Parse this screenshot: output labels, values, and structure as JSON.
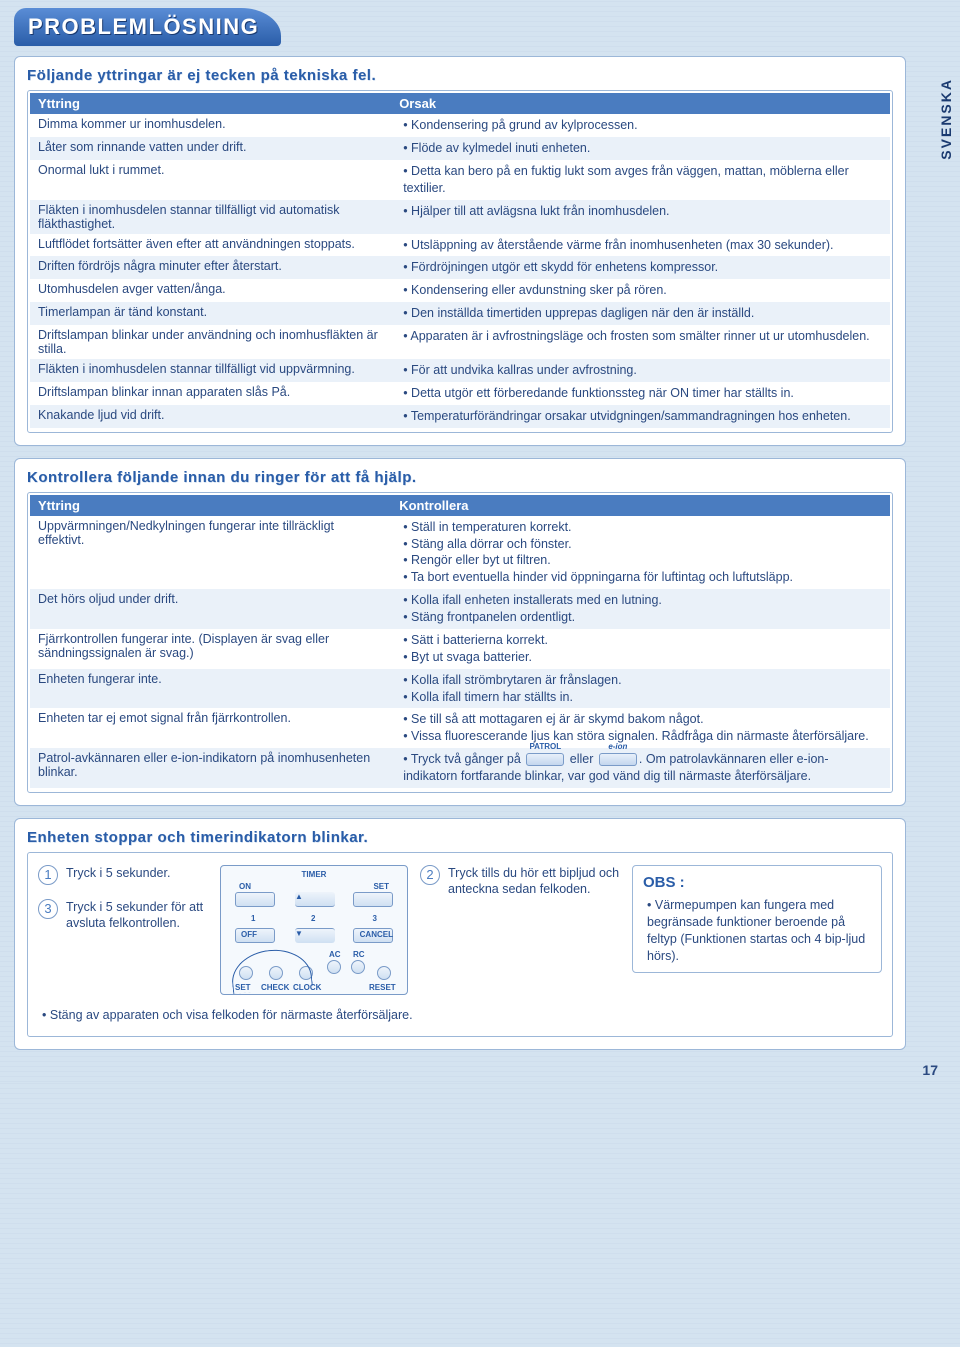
{
  "lang_tab": "SVENSKA",
  "page_number": "17",
  "title": "PROBLEMLÖSNING",
  "section1": {
    "heading": "Följande yttringar är ej tecken på tekniska fel.",
    "col1": "Yttring",
    "col2": "Orsak",
    "rows": [
      {
        "y": "Dimma kommer ur inomhusdelen.",
        "o": [
          "Kondensering på grund av kylprocessen."
        ]
      },
      {
        "y": "Låter som rinnande vatten under drift.",
        "o": [
          "Flöde av kylmedel inuti enheten."
        ]
      },
      {
        "y": "Onormal lukt i rummet.",
        "o": [
          "Detta kan bero på en fuktig lukt som avges från väggen, mattan, möblerna eller textilier."
        ]
      },
      {
        "y": "Fläkten i inomhusdelen stannar tillfälligt vid automatisk fläkthastighet.",
        "o": [
          "Hjälper till att avlägsna lukt från inomhusdelen."
        ]
      },
      {
        "y": "Luftflödet fortsätter även efter att användningen stoppats.",
        "o": [
          "Utsläppning av återstående värme från inomhusenheten (max 30 sekunder)."
        ]
      },
      {
        "y": "Driften fördröjs några minuter efter återstart.",
        "o": [
          "Fördröjningen utgör ett skydd för enhetens kompressor."
        ]
      },
      {
        "y": "Utomhusdelen avger vatten/ånga.",
        "o": [
          "Kondensering eller avdunstning sker på rören."
        ]
      },
      {
        "y": "Timerlampan är tänd konstant.",
        "o": [
          "Den inställda timertiden upprepas dagligen när den är inställd."
        ]
      },
      {
        "y": "Driftslampan blinkar under användning och inomhusfläkten är stilla.",
        "o": [
          "Apparaten är i avfrostningsläge och frosten som smälter rinner ut ur utomhusdelen."
        ]
      },
      {
        "y": "Fläkten i inomhusdelen stannar tillfälligt vid uppvärmning.",
        "o": [
          "För att undvika kallras under avfrostning."
        ]
      },
      {
        "y": "Driftslampan blinkar innan apparaten slås På.",
        "o": [
          "Detta utgör ett förberedande funktionssteg när ON timer har ställts in."
        ]
      },
      {
        "y": "Knakande ljud vid drift.",
        "o": [
          "Temperaturförändringar orsakar utvidgningen/sammandragningen hos enheten."
        ]
      }
    ]
  },
  "section2": {
    "heading": "Kontrollera följande innan du ringer för att få hjälp.",
    "col1": "Yttring",
    "col2": "Kontrollera",
    "rows": [
      {
        "y": "Uppvärmningen/Nedkylningen fungerar inte tillräckligt effektivt.",
        "o": [
          "Ställ in temperaturen korrekt.",
          "Stäng alla dörrar och fönster.",
          "Rengör eller byt ut filtren.",
          "Ta bort eventuella hinder vid öppningarna för luftintag och luftutsläpp."
        ]
      },
      {
        "y": "Det hörs oljud under drift.",
        "o": [
          "Kolla ifall enheten installerats med en lutning.",
          "Stäng frontpanelen ordentligt."
        ]
      },
      {
        "y": "Fjärrkontrollen fungerar inte.\n(Displayen är svag eller sändningssignalen är svag.)",
        "o": [
          "Sätt i batterierna korrekt.",
          "Byt ut svaga batterier."
        ]
      },
      {
        "y": "Enheten fungerar inte.",
        "o": [
          "Kolla ifall strömbrytaren är frånslagen.",
          "Kolla ifall timern har ställts in."
        ]
      },
      {
        "y": "Enheten tar ej emot signal från fjärrkontrollen.",
        "o": [
          "Se till så att mottagaren ej är är skymd bakom något.",
          "Vissa fluorescerande ljus kan störa signalen. Rådfråga din närmaste återförsäljare."
        ]
      }
    ],
    "patrol_row": {
      "y": "Patrol-avkännaren eller e-ion-indikatorn på inomhusenheten blinkar.",
      "pre": "Tryck två gånger på ",
      "btn1_label": "PATROL",
      "mid": " eller ",
      "btn2_label": "e-ion",
      "post": ". Om patrolavkännaren eller e-ion-indikatorn fortfarande blinkar, var god vänd dig till närmaste återförsäljare."
    }
  },
  "section3": {
    "heading": "Enheten stoppar och timerindikatorn blinkar.",
    "step1": "Tryck i 5 sekunder.",
    "step3": "Tryck i 5 sekunder för att avsluta felkontrollen.",
    "step2": "Tryck tills du hör ett bipljud och anteckna sedan felkoden.",
    "remote": {
      "timer": "TIMER",
      "on": "ON",
      "set": "SET",
      "off": "OFF",
      "cancel": "CANCEL",
      "n1": "1",
      "n2": "2",
      "n3": "3",
      "setb": "SET",
      "check": "CHECK",
      "clock": "CLOCK",
      "reset": "RESET",
      "ac": "AC",
      "rc": "RC"
    },
    "foot": "Stäng av apparaten och visa felkoden för närmaste återförsäljare.",
    "obs_title": "OBS :",
    "obs_text": "Värmepumpen kan fungera med begränsade funktioner beroende på feltyp (Funktionen startas och 4 bip-ljud hörs)."
  }
}
